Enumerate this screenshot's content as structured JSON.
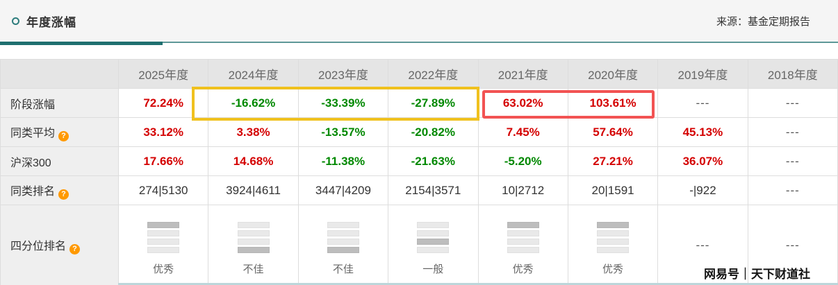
{
  "header": {
    "title": "年度涨幅",
    "source": "来源：基金定期报告"
  },
  "icons": {
    "help": "?"
  },
  "table": {
    "columns": [
      "",
      "2025年度",
      "2024年度",
      "2023年度",
      "2022年度",
      "2021年度",
      "2020年度",
      "2019年度",
      "2018年度"
    ],
    "rows": [
      {
        "label": "阶段涨幅",
        "cells": [
          {
            "text": "72.24%"
          },
          {
            "text": "-16.62%"
          },
          {
            "text": "-33.39%"
          },
          {
            "text": "-27.89%"
          },
          {
            "text": "63.02%"
          },
          {
            "text": "103.61%"
          },
          {
            "text": "---"
          },
          {
            "text": "---"
          }
        ]
      },
      {
        "label": "同类平均",
        "cells": [
          {
            "text": "33.12%"
          },
          {
            "text": "3.38%"
          },
          {
            "text": "-13.57%"
          },
          {
            "text": "-20.82%"
          },
          {
            "text": "7.45%"
          },
          {
            "text": "57.64%"
          },
          {
            "text": "45.13%"
          },
          {
            "text": "---"
          }
        ]
      },
      {
        "label": "沪深300",
        "cells": [
          {
            "text": "17.66%"
          },
          {
            "text": "14.68%"
          },
          {
            "text": "-11.38%"
          },
          {
            "text": "-21.63%"
          },
          {
            "text": "-5.20%"
          },
          {
            "text": "27.21%"
          },
          {
            "text": "36.07%"
          },
          {
            "text": "---"
          }
        ]
      },
      {
        "label": "同类排名",
        "cells": [
          {
            "text": "274|5130"
          },
          {
            "text": "3924|4611"
          },
          {
            "text": "3447|4209"
          },
          {
            "text": "2154|3571"
          },
          {
            "text": "10|2712"
          },
          {
            "text": "20|1591"
          },
          {
            "text": "-|922"
          },
          {
            "text": "---"
          }
        ]
      },
      {
        "label": "四分位排名",
        "cells": [
          {
            "label": "优秀",
            "active": 0
          },
          {
            "label": "不佳",
            "active": 3
          },
          {
            "label": "不佳",
            "active": 3
          },
          {
            "label": "一般",
            "active": 2
          },
          {
            "label": "优秀",
            "active": 0
          },
          {
            "label": "优秀",
            "active": 0
          },
          {
            "text": "---"
          },
          {
            "text": "---"
          }
        ]
      }
    ]
  },
  "highlights": {
    "yellow_box_color": "#f0c11e",
    "red_box_color": "#f25353"
  },
  "colors": {
    "up_red": "#d40000",
    "down_green": "#008800",
    "accent_teal": "#1f6f6f"
  },
  "watermark": {
    "text": "网易号｜天下财道社"
  }
}
